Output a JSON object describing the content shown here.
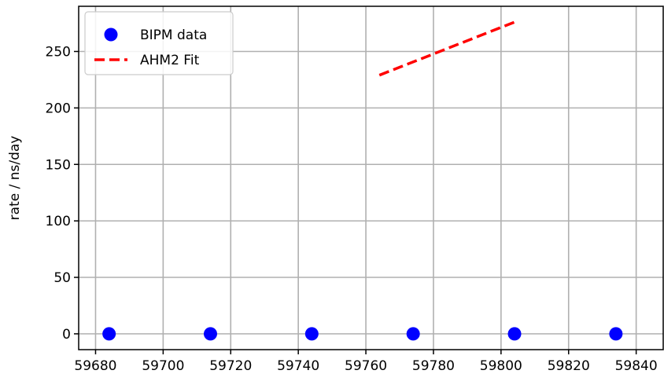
{
  "chart_data": {
    "type": "scatter",
    "title": "",
    "xlabel": "",
    "ylabel": "rate / ns/day",
    "xlim": [
      59675,
      59848
    ],
    "ylim": [
      -14,
      290
    ],
    "xticks": [
      59680,
      59700,
      59720,
      59740,
      59760,
      59780,
      59800,
      59820,
      59840
    ],
    "yticks": [
      0,
      50,
      100,
      150,
      200,
      250
    ],
    "grid": true,
    "legend_position": "top-left",
    "series": [
      {
        "name": "BIPM data",
        "kind": "scatter",
        "color": "#0000ff",
        "x": [
          59684,
          59714,
          59744,
          59774,
          59804,
          59834
        ],
        "y": [
          0,
          0,
          0,
          0,
          0,
          0
        ]
      },
      {
        "name": "AHM2 Fit",
        "kind": "line",
        "style": "dashed",
        "color": "#ff0000",
        "x": [
          59764,
          59804
        ],
        "y": [
          229,
          276
        ]
      }
    ]
  }
}
